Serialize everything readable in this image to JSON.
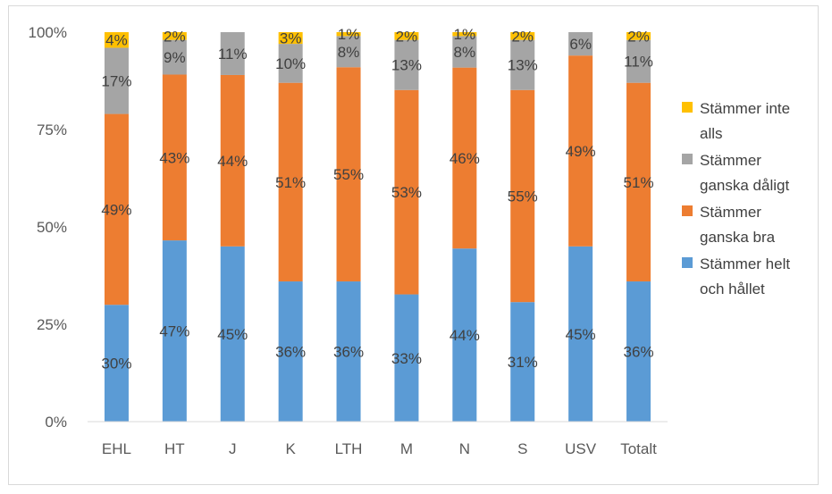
{
  "chart_data": {
    "type": "bar",
    "stacked": true,
    "percent": true,
    "categories": [
      "EHL",
      "HT",
      "J",
      "K",
      "LTH",
      "M",
      "N",
      "S",
      "USV",
      "Totalt"
    ],
    "series": [
      {
        "name": "Stämmer helt och hållet",
        "color": "#5b9bd5",
        "values": [
          30,
          47,
          45,
          36,
          36,
          33,
          44,
          31,
          45,
          36
        ],
        "labels": [
          "30%",
          "47%",
          "45%",
          "36%",
          "36%",
          "33%",
          "44%",
          "31%",
          "45%",
          "36%"
        ]
      },
      {
        "name": "Stämmer ganska bra",
        "color": "#ed7d31",
        "values": [
          49,
          43,
          44,
          51,
          55,
          53,
          46,
          55,
          49,
          51
        ],
        "labels": [
          "49%",
          "43%",
          "44%",
          "51%",
          "55%",
          "53%",
          "46%",
          "55%",
          "49%",
          "51%"
        ]
      },
      {
        "name": "Stämmer ganska dåligt",
        "color": "#a5a5a5",
        "values": [
          17,
          9,
          11,
          10,
          8,
          13,
          8,
          13,
          6,
          11
        ],
        "labels": [
          "17%",
          "9%",
          "11%",
          "10%",
          "8%",
          "13%",
          "8%",
          "13%",
          "6%",
          "11%"
        ]
      },
      {
        "name": "Stämmer inte alls",
        "color": "#ffc000",
        "values": [
          4,
          2,
          0,
          3,
          1,
          2,
          1,
          2,
          0,
          2
        ],
        "labels": [
          "4%",
          "2%",
          "",
          "3%",
          "1%",
          "2%",
          "1%",
          "2%",
          "",
          "2%"
        ]
      }
    ],
    "legend_lines": [
      [
        "Stämmer inte",
        "alls"
      ],
      [
        "Stämmer",
        "ganska dåligt"
      ],
      [
        "Stämmer",
        "ganska bra"
      ],
      [
        "Stämmer helt",
        "och hållet"
      ]
    ],
    "y_ticks": [
      "0%",
      "25%",
      "50%",
      "75%",
      "100%"
    ],
    "ylim": [
      0,
      100
    ],
    "legend_position": "right",
    "grid": false
  }
}
